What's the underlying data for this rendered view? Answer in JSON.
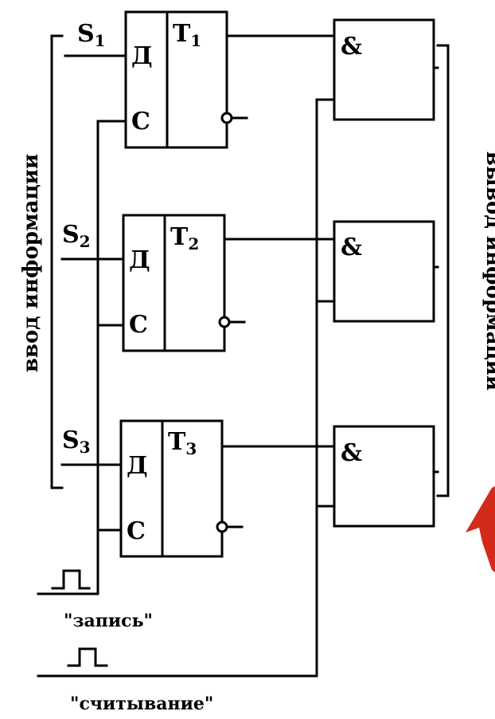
{
  "flipflops": [
    {
      "input": "S",
      "input_sub": "1",
      "d_label": "Д",
      "c_label": "С",
      "name": "Т",
      "name_sub": "1"
    },
    {
      "input": "S",
      "input_sub": "2",
      "d_label": "Д",
      "c_label": "С",
      "name": "Т",
      "name_sub": "2"
    },
    {
      "input": "S",
      "input_sub": "3",
      "d_label": "Д",
      "c_label": "С",
      "name": "Т",
      "name_sub": "3"
    }
  ],
  "and_gates": [
    {
      "label": "&"
    },
    {
      "label": "&"
    },
    {
      "label": "&"
    }
  ],
  "labels": {
    "input_bracket": "ввод информации",
    "output_bracket": "вывод информации",
    "write_signal": "\"запись\"",
    "read_signal": "\"считывание\""
  },
  "colors": {
    "line": "#000000",
    "accent_shape": "#d42a1c"
  }
}
